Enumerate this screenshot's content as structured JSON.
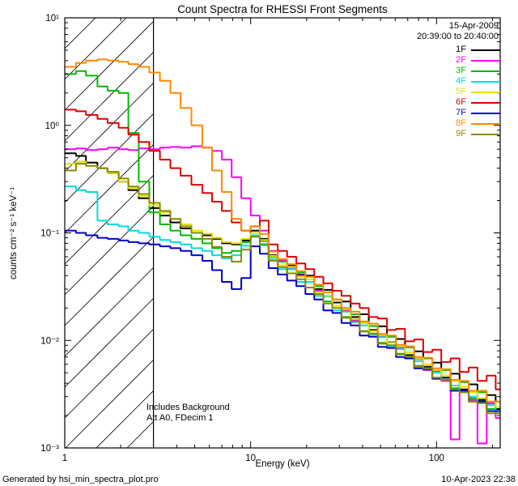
{
  "header": {
    "title": "Count Spectra for RHESSI Front Segments"
  },
  "annotations": {
    "date": "15-Apr-2009",
    "time_range": "20:39:00 to 20:40:00",
    "background_note": "Includes Background",
    "att_note": "Att A0, FDecim 1"
  },
  "footer": {
    "generated_by": "Generated by hsi_min_spectra_plot.pro",
    "timestamp": "10-Apr-2023 22:38"
  },
  "chart_data": {
    "type": "line",
    "style": "step",
    "title": "Count Spectra for RHESSI Front Segments",
    "xlabel": "Energy (keV)",
    "ylabel": "counts cm⁻² s⁻¹ keV⁻¹",
    "xscale": "log",
    "yscale": "log",
    "xlim": [
      1,
      220
    ],
    "ylim": [
      0.001,
      10
    ],
    "grid": false,
    "legend_position": "top-right",
    "x_ticks": [
      {
        "value": 1,
        "label": "1"
      },
      {
        "value": 10,
        "label": "10"
      },
      {
        "value": 100,
        "label": "100"
      }
    ],
    "y_ticks": [
      {
        "value": 0.001,
        "label": "10⁻³"
      },
      {
        "value": 0.01,
        "label": "10⁻²"
      },
      {
        "value": 0.1,
        "label": "10⁻¹"
      },
      {
        "value": 1,
        "label": "10⁰"
      },
      {
        "value": 10,
        "label": "10¹"
      }
    ],
    "hatch_region": {
      "xmin": 1,
      "xmax": 3
    },
    "energies": [
      1.0,
      1.15,
      1.3,
      1.5,
      1.7,
      1.95,
      2.2,
      2.5,
      2.85,
      3.25,
      3.7,
      4.2,
      4.8,
      5.5,
      6.2,
      7.0,
      7.9,
      8.9,
      10.0,
      11.2,
      12.5,
      14.0,
      15.7,
      17.6,
      19.7,
      22.0,
      24.6,
      27.5,
      30.8,
      34.5,
      38.6,
      43.2,
      48.3,
      54.1,
      60.5,
      67.7,
      75.8,
      84.8,
      94.9,
      106,
      119,
      133,
      149,
      166,
      186,
      208,
      233,
      261,
      292,
      300
    ],
    "series": [
      {
        "name": "1F",
        "color": "#000000",
        "values": [
          0.55,
          0.52,
          0.45,
          0.4,
          0.36,
          0.3,
          0.25,
          0.21,
          0.17,
          0.145,
          0.125,
          0.11,
          0.1,
          0.095,
          0.088,
          0.08,
          0.078,
          0.085,
          0.105,
          0.088,
          0.062,
          0.056,
          0.05,
          0.041,
          0.04,
          0.03,
          0.0295,
          0.0225,
          0.023,
          0.0165,
          0.0175,
          0.0125,
          0.0135,
          0.0096,
          0.0103,
          0.0073,
          0.0079,
          0.0057,
          0.0062,
          0.0045,
          0.0049,
          0.0035,
          0.0039,
          0.0028,
          0.0031,
          0.0023,
          0.0027,
          0.0019,
          0.0023,
          0.0018
        ]
      },
      {
        "name": "2F",
        "color": "#ff00ff",
        "values": [
          0.6,
          0.61,
          0.59,
          0.6,
          0.62,
          0.6,
          0.59,
          0.61,
          0.6,
          0.62,
          0.63,
          0.62,
          0.64,
          0.62,
          0.58,
          0.48,
          0.33,
          0.21,
          0.145,
          0.105,
          0.068,
          0.056,
          0.047,
          0.04,
          0.035,
          0.029,
          0.026,
          0.021,
          0.019,
          0.0155,
          0.0145,
          0.0115,
          0.011,
          0.0088,
          0.0086,
          0.0068,
          0.0067,
          0.0053,
          0.0052,
          0.0042,
          0.0012,
          0.0033,
          0.0028,
          0.0011,
          0.0026,
          0.0019,
          0.001,
          0.0018,
          0.0013,
          0.0012
        ]
      },
      {
        "name": "3F",
        "color": "#00bb00",
        "values": [
          3.0,
          3.2,
          2.9,
          2.3,
          2.1,
          2.0,
          0.85,
          0.3,
          0.155,
          0.12,
          0.105,
          0.095,
          0.088,
          0.08,
          0.072,
          0.065,
          0.068,
          0.082,
          0.1,
          0.084,
          0.06,
          0.054,
          0.042,
          0.043,
          0.031,
          0.032,
          0.023,
          0.024,
          0.0165,
          0.0175,
          0.0122,
          0.0136,
          0.0095,
          0.0108,
          0.0075,
          0.0086,
          0.0058,
          0.0068,
          0.0045,
          0.0053,
          0.0036,
          0.0041,
          0.0029,
          0.0033,
          0.0023,
          0.0027,
          0.0019,
          0.0022,
          0.0015,
          0.0016
        ]
      },
      {
        "name": "4F",
        "color": "#00dddd",
        "values": [
          0.27,
          0.25,
          0.24,
          0.13,
          0.12,
          0.115,
          0.105,
          0.1,
          0.092,
          0.086,
          0.082,
          0.078,
          0.072,
          0.068,
          0.062,
          0.058,
          0.062,
          0.076,
          0.095,
          0.079,
          0.057,
          0.046,
          0.046,
          0.035,
          0.035,
          0.026,
          0.0255,
          0.019,
          0.0185,
          0.0148,
          0.0138,
          0.0113,
          0.0107,
          0.0088,
          0.0083,
          0.007,
          0.0064,
          0.0055,
          0.005,
          0.0043,
          0.0038,
          0.0034,
          0.003,
          0.0027,
          0.0025,
          0.0021,
          0.002,
          0.0017,
          0.0016,
          0.0014
        ]
      },
      {
        "name": "5F",
        "color": "#e3e300",
        "values": [
          0.44,
          0.46,
          0.42,
          0.4,
          0.36,
          0.3,
          0.26,
          0.22,
          0.18,
          0.155,
          0.135,
          0.12,
          0.105,
          0.098,
          0.09,
          0.082,
          0.08,
          0.088,
          0.1,
          0.086,
          0.061,
          0.05,
          0.048,
          0.039,
          0.037,
          0.028,
          0.026,
          0.021,
          0.0195,
          0.0158,
          0.0145,
          0.0122,
          0.0112,
          0.0095,
          0.0088,
          0.0077,
          0.0068,
          0.006,
          0.0053,
          0.0047,
          0.0042,
          0.0037,
          0.0033,
          0.0029,
          0.0027,
          0.0024,
          0.0022,
          0.0019,
          0.0018,
          0.0016
        ]
      },
      {
        "name": "6F",
        "color": "#e00000",
        "values": [
          1.4,
          1.35,
          1.25,
          1.15,
          1.05,
          0.95,
          0.82,
          0.7,
          0.58,
          0.48,
          0.4,
          0.34,
          0.28,
          0.235,
          0.195,
          0.16,
          0.125,
          0.105,
          0.115,
          0.13,
          0.078,
          0.068,
          0.06,
          0.052,
          0.046,
          0.039,
          0.034,
          0.029,
          0.026,
          0.022,
          0.02,
          0.0165,
          0.016,
          0.0125,
          0.0128,
          0.0098,
          0.0102,
          0.0078,
          0.0082,
          0.0063,
          0.0068,
          0.0051,
          0.0056,
          0.0042,
          0.0047,
          0.0035,
          0.004,
          0.0029,
          0.0034,
          0.0026
        ]
      },
      {
        "name": "7F",
        "color": "#0000cc",
        "values": [
          0.105,
          0.1,
          0.095,
          0.09,
          0.088,
          0.085,
          0.082,
          0.08,
          0.078,
          0.075,
          0.072,
          0.068,
          0.062,
          0.055,
          0.045,
          0.035,
          0.03,
          0.038,
          0.075,
          0.064,
          0.047,
          0.041,
          0.036,
          0.032,
          0.027,
          0.024,
          0.019,
          0.018,
          0.0145,
          0.0138,
          0.0111,
          0.0108,
          0.0087,
          0.0085,
          0.007,
          0.0068,
          0.0055,
          0.0054,
          0.0044,
          0.0043,
          0.0034,
          0.0034,
          0.0027,
          0.0027,
          0.0022,
          0.0022,
          0.0018,
          0.0017,
          0.0014,
          0.0013
        ]
      },
      {
        "name": "8F",
        "color": "#ff8800",
        "values": [
          3.5,
          3.8,
          4.0,
          4.1,
          4.0,
          3.9,
          3.7,
          3.5,
          3.1,
          2.6,
          2.0,
          1.45,
          1.0,
          0.62,
          0.38,
          0.24,
          0.135,
          0.105,
          0.115,
          0.098,
          0.067,
          0.057,
          0.051,
          0.044,
          0.039,
          0.033,
          0.028,
          0.024,
          0.02,
          0.0185,
          0.015,
          0.0143,
          0.0115,
          0.0111,
          0.0091,
          0.0088,
          0.007,
          0.0069,
          0.0055,
          0.0054,
          0.0043,
          0.0042,
          0.0034,
          0.0034,
          0.0027,
          0.0027,
          0.0022,
          0.0022,
          0.0018,
          0.0017
        ]
      },
      {
        "name": "9F",
        "color": "#8a8a00",
        "values": [
          0.38,
          0.44,
          0.42,
          0.4,
          0.37,
          0.32,
          0.27,
          0.23,
          0.19,
          0.16,
          0.135,
          0.115,
          0.1,
          0.088,
          0.074,
          0.06,
          0.054,
          0.07,
          0.092,
          0.077,
          0.055,
          0.048,
          0.042,
          0.037,
          0.031,
          0.027,
          0.022,
          0.02,
          0.0162,
          0.015,
          0.0121,
          0.0116,
          0.0093,
          0.009,
          0.0074,
          0.0071,
          0.0057,
          0.0055,
          0.0045,
          0.0043,
          0.0035,
          0.0033,
          0.0027,
          0.0026,
          0.0021,
          0.0021,
          0.0017,
          0.0016,
          0.0014,
          0.0013
        ]
      }
    ]
  }
}
